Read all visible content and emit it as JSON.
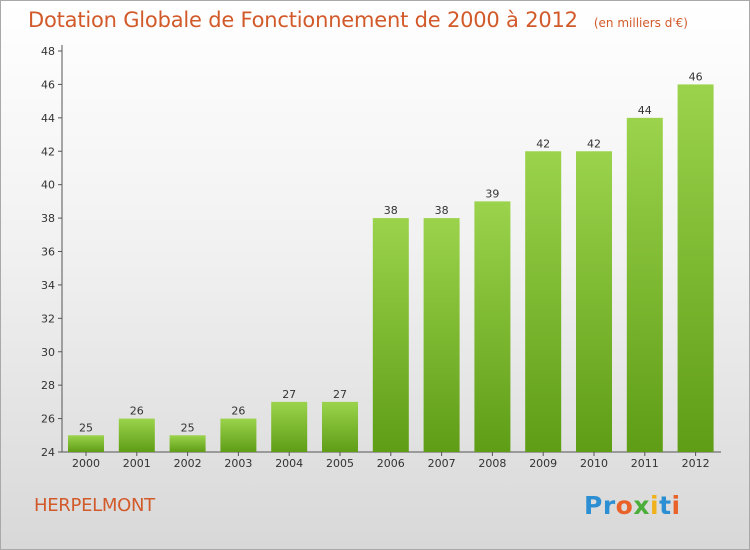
{
  "chart_data": {
    "type": "bar",
    "title": "Dotation Globale de Fonctionnement de 2000 à 2012",
    "subtitle": "(en milliers d'€)",
    "categories": [
      "2000",
      "2001",
      "2002",
      "2003",
      "2004",
      "2005",
      "2006",
      "2007",
      "2008",
      "2009",
      "2010",
      "2011",
      "2012"
    ],
    "values": [
      25,
      26,
      25,
      26,
      27,
      27,
      38,
      38,
      39,
      42,
      42,
      44,
      46
    ],
    "ylim": [
      24,
      48
    ],
    "yticks": [
      24,
      26,
      28,
      30,
      32,
      34,
      36,
      38,
      40,
      42,
      44,
      46,
      48
    ],
    "xlabel": "",
    "ylabel": "",
    "grid": false,
    "bar_color": "#7cb82f"
  },
  "footer": {
    "commune": "HERPELMONT",
    "logo_parts": [
      "Pr",
      "o",
      "x",
      "i",
      "t",
      "i"
    ]
  }
}
